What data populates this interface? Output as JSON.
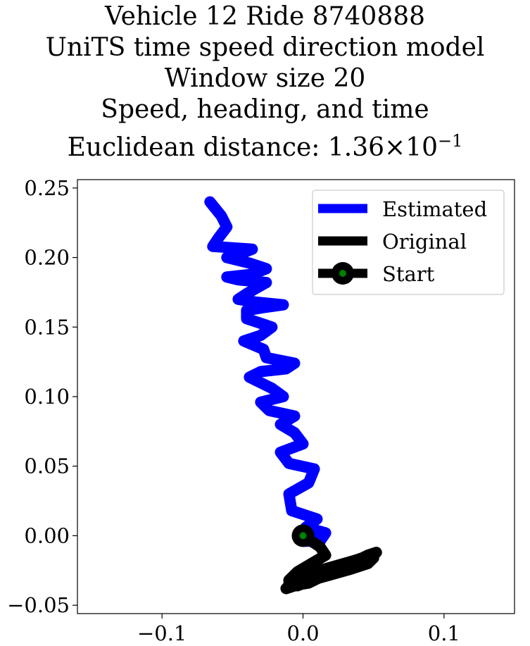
{
  "chart_data": {
    "type": "line",
    "title_lines": [
      "Vehicle 12 Ride 8740888",
      "UniTS time speed direction model",
      "Window size 20",
      "Speed, heading, and time"
    ],
    "title_metric_prefix": "Euclidean distance: ",
    "title_metric_mantissa": "1.36",
    "title_metric_times": "×",
    "title_metric_base": "10",
    "title_metric_exponent": "−1",
    "xlabel": "",
    "ylabel": "",
    "xlim": [
      -0.16,
      0.15
    ],
    "ylim": [
      -0.056,
      0.256
    ],
    "xticks": [
      -0.1,
      0.0,
      0.1
    ],
    "xtick_labels": [
      "−0.1",
      "0.0",
      "0.1"
    ],
    "yticks": [
      -0.05,
      0.0,
      0.05,
      0.1,
      0.15,
      0.2,
      0.25
    ],
    "ytick_labels": [
      "−0.05",
      "0.00",
      "0.05",
      "0.10",
      "0.15",
      "0.20",
      "0.25"
    ],
    "grid": false,
    "legend_position": "top-right",
    "series": [
      {
        "name": "Estimated",
        "color": "#0000ff",
        "x": [
          0.0,
          0.012,
          0.016,
          0.002,
          0.01,
          -0.008,
          -0.01,
          0.004,
          0.008,
          -0.01,
          -0.016,
          0.0,
          -0.006,
          -0.016,
          -0.006,
          -0.024,
          -0.03,
          -0.014,
          -0.022,
          -0.038,
          -0.03,
          -0.012,
          -0.006,
          -0.026,
          -0.028,
          -0.042,
          -0.03,
          -0.022,
          -0.04,
          -0.04,
          -0.028,
          -0.014,
          -0.034,
          -0.046,
          -0.04,
          -0.026,
          -0.046,
          -0.054,
          -0.036,
          -0.026,
          -0.038,
          -0.054,
          -0.046,
          -0.036,
          -0.064,
          -0.06,
          -0.054,
          -0.058,
          -0.066
        ],
        "y": [
          -0.004,
          -0.004,
          0.002,
          0.006,
          0.012,
          0.018,
          0.03,
          0.038,
          0.048,
          0.052,
          0.06,
          0.066,
          0.074,
          0.08,
          0.086,
          0.09,
          0.096,
          0.1,
          0.106,
          0.114,
          0.118,
          0.12,
          0.124,
          0.128,
          0.134,
          0.14,
          0.144,
          0.15,
          0.156,
          0.162,
          0.164,
          0.166,
          0.168,
          0.17,
          0.174,
          0.182,
          0.184,
          0.186,
          0.188,
          0.192,
          0.196,
          0.2,
          0.202,
          0.206,
          0.208,
          0.214,
          0.222,
          0.23,
          0.24
        ]
      },
      {
        "name": "Original",
        "color": "#000000",
        "x": [
          0.0,
          0.012,
          0.016,
          0.006,
          -0.004,
          -0.01,
          -0.008,
          0.004,
          0.016,
          0.028,
          0.038,
          0.046,
          0.052,
          0.048,
          0.038,
          0.026,
          0.014,
          0.002,
          -0.006,
          -0.012,
          -0.008,
          0.004,
          0.018,
          0.032,
          0.044,
          0.05,
          0.046,
          0.034,
          0.02,
          0.006,
          -0.004,
          -0.01,
          -0.006,
          0.008,
          0.022,
          0.036,
          0.048,
          0.052
        ],
        "y": [
          0.0,
          -0.008,
          -0.014,
          -0.02,
          -0.026,
          -0.032,
          -0.036,
          -0.034,
          -0.028,
          -0.022,
          -0.018,
          -0.014,
          -0.012,
          -0.016,
          -0.02,
          -0.024,
          -0.028,
          -0.032,
          -0.036,
          -0.038,
          -0.034,
          -0.03,
          -0.026,
          -0.022,
          -0.018,
          -0.016,
          -0.02,
          -0.024,
          -0.028,
          -0.032,
          -0.036,
          -0.034,
          -0.03,
          -0.026,
          -0.022,
          -0.018,
          -0.014,
          -0.012
        ]
      },
      {
        "name": "Start",
        "color": "#000000",
        "marker_face_color": "#008000",
        "x": [
          0.0
        ],
        "y": [
          0.0
        ]
      }
    ]
  }
}
